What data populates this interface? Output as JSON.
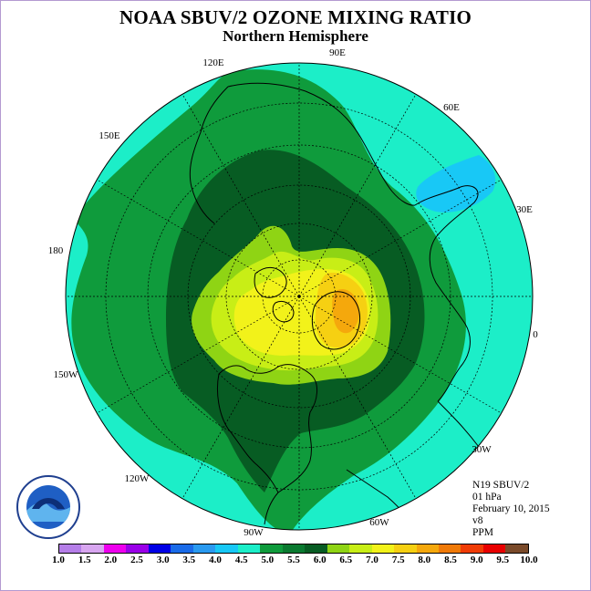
{
  "title": "NOAA SBUV/2 OZONE MIXING RATIO",
  "subtitle": "Northern Hemisphere",
  "meta": {
    "satellite": "N19 SBUV/2",
    "level": "01 hPa",
    "date": "February 10, 2015",
    "version": "v8",
    "units": "PPM"
  },
  "longitude_labels": [
    {
      "text": "90E",
      "id": "lon-90e"
    },
    {
      "text": "60E",
      "id": "lon-60e"
    },
    {
      "text": "30E",
      "id": "lon-30e"
    },
    {
      "text": "0",
      "id": "lon-0"
    },
    {
      "text": "30W",
      "id": "lon-30w"
    },
    {
      "text": "60W",
      "id": "lon-60w"
    },
    {
      "text": "90W",
      "id": "lon-90w"
    },
    {
      "text": "120W",
      "id": "lon-120w"
    },
    {
      "text": "150W",
      "id": "lon-150w"
    },
    {
      "text": "180",
      "id": "lon-180"
    },
    {
      "text": "150E",
      "id": "lon-150e"
    },
    {
      "text": "120E",
      "id": "lon-120e"
    }
  ],
  "colorbar": {
    "colors": [
      "#b57ee8",
      "#d8a6f0",
      "#ee00ee",
      "#9a00e8",
      "#0000e6",
      "#1a6be8",
      "#2a9af0",
      "#18c8f6",
      "#1ceec8",
      "#0f9b3c",
      "#0a7a30",
      "#075c23",
      "#8fd414",
      "#c8ee16",
      "#f2f21a",
      "#f6d012",
      "#f5a80c",
      "#f07a08",
      "#f03c06",
      "#e80000",
      "#7a4a2a"
    ],
    "ticks": [
      "1.0",
      "1.5",
      "2.0",
      "2.5",
      "3.0",
      "3.5",
      "4.0",
      "4.5",
      "5.0",
      "5.5",
      "6.0",
      "6.5",
      "7.0",
      "7.5",
      "8.0",
      "8.5",
      "9.0",
      "9.5",
      "10.0"
    ]
  },
  "colors": {
    "outer_cyan": "#1ceec8",
    "band_green": "#0f9b3c",
    "band_dark": "#075c23",
    "inner_lime": "#8fd414",
    "inner_yellow": "#f2f21a",
    "inner_orange": "#f5a80c",
    "low_blue": "#18c8f6"
  }
}
